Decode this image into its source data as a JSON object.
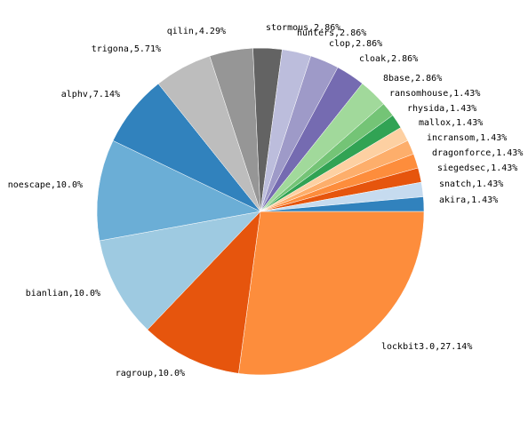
{
  "chart_data": {
    "type": "pie",
    "slices": [
      {
        "label": "lockbit3.0,27.14%",
        "value": 27.14,
        "color": "#fd8d3c"
      },
      {
        "label": "ragroup,10.0%",
        "value": 10.0,
        "color": "#e6550d"
      },
      {
        "label": "bianlian,10.0%",
        "value": 10.0,
        "color": "#9ecae1"
      },
      {
        "label": "noescape,10.0%",
        "value": 10.0,
        "color": "#6baed6"
      },
      {
        "label": "alphv,7.14%",
        "value": 7.14,
        "color": "#3182bd"
      },
      {
        "label": "trigona,5.71%",
        "value": 5.71,
        "color": "#bdbdbd"
      },
      {
        "label": "qilin,4.29%",
        "value": 4.29,
        "color": "#969696"
      },
      {
        "label": "stormous,2.86%",
        "value": 2.86,
        "color": "#636363"
      },
      {
        "label": "hunters,2.86%",
        "value": 2.86,
        "color": "#bcbddc"
      },
      {
        "label": "clop,2.86%",
        "value": 2.86,
        "color": "#9e9ac8"
      },
      {
        "label": "cloak,2.86%",
        "value": 2.86,
        "color": "#756bb1"
      },
      {
        "label": "8base,2.86%",
        "value": 2.86,
        "color": "#a1d99b"
      },
      {
        "label": "ransomhouse,1.43%",
        "value": 1.43,
        "color": "#74c476"
      },
      {
        "label": "rhysida,1.43%",
        "value": 1.43,
        "color": "#31a354"
      },
      {
        "label": "mallox,1.43%",
        "value": 1.43,
        "color": "#fdd0a2"
      },
      {
        "label": "incransom,1.43%",
        "value": 1.43,
        "color": "#fdae6b"
      },
      {
        "label": "dragonforce,1.43%",
        "value": 1.43,
        "color": "#fd8d3c"
      },
      {
        "label": "siegedsec,1.43%",
        "value": 1.43,
        "color": "#e6550d"
      },
      {
        "label": "snatch,1.43%",
        "value": 1.43,
        "color": "#c6dbef"
      },
      {
        "label": "akira,1.43%",
        "value": 1.43,
        "color": "#3182bd"
      }
    ],
    "title": "",
    "legend": "none",
    "start": "3 o'clock",
    "direction": "clockwise"
  }
}
